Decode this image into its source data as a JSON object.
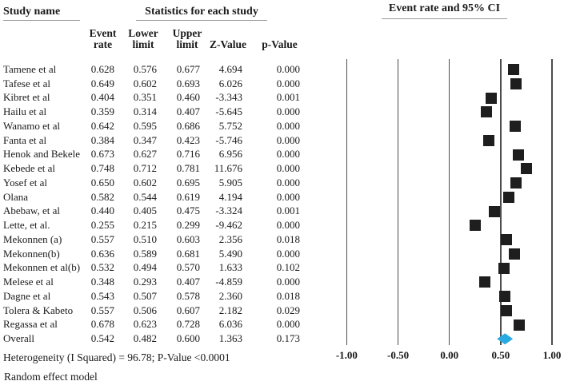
{
  "headers": {
    "study_name": "Study name",
    "stats_group": "Statistics for each study",
    "ci_group": "Event rate and 95% CI",
    "columns": [
      {
        "line1": "Event",
        "line2": "rate"
      },
      {
        "line1": "Lower",
        "line2": "limit"
      },
      {
        "line1": "Upper",
        "line2": "limit"
      },
      {
        "line1": "",
        "line2": "Z-Value"
      },
      {
        "line1": "",
        "line2": "p-Value"
      }
    ]
  },
  "chart_data": {
    "type": "forest",
    "title": "Event rate and 95% CI",
    "studies": [
      {
        "name": "Tamene et al",
        "rate": "0.628",
        "lower": "0.576",
        "upper": "0.677",
        "z": "4.694",
        "p": "0.000"
      },
      {
        "name": "Tafese et al",
        "rate": "0.649",
        "lower": "0.602",
        "upper": "0.693",
        "z": "6.026",
        "p": "0.000"
      },
      {
        "name": "Kibret et al",
        "rate": "0.404",
        "lower": "0.351",
        "upper": "0.460",
        "z": "-3.343",
        "p": "0.001"
      },
      {
        "name": "Hailu et al",
        "rate": "0.359",
        "lower": "0.314",
        "upper": "0.407",
        "z": "-5.645",
        "p": "0.000"
      },
      {
        "name": "Wanamo et al",
        "rate": "0.642",
        "lower": "0.595",
        "upper": "0.686",
        "z": "5.752",
        "p": "0.000"
      },
      {
        "name": "Fanta et al",
        "rate": "0.384",
        "lower": "0.347",
        "upper": "0.423",
        "z": "-5.746",
        "p": "0.000"
      },
      {
        "name": "Henok and Bekele",
        "rate": "0.673",
        "lower": "0.627",
        "upper": "0.716",
        "z": "6.956",
        "p": "0.000"
      },
      {
        "name": "Kebede et al",
        "rate": "0.748",
        "lower": "0.712",
        "upper": "0.781",
        "z": "11.676",
        "p": "0.000"
      },
      {
        "name": "Yosef et al",
        "rate": "0.650",
        "lower": "0.602",
        "upper": "0.695",
        "z": "5.905",
        "p": "0.000"
      },
      {
        "name": "Olana",
        "rate": "0.582",
        "lower": "0.544",
        "upper": "0.619",
        "z": "4.194",
        "p": "0.000"
      },
      {
        "name": "Abebaw, et al",
        "rate": "0.440",
        "lower": "0.405",
        "upper": "0.475",
        "z": "-3.324",
        "p": "0.001"
      },
      {
        "name": "Lette, et al.",
        "rate": "0.255",
        "lower": "0.215",
        "upper": "0.299",
        "z": "-9.462",
        "p": "0.000"
      },
      {
        "name": "Mekonnen (a)",
        "rate": "0.557",
        "lower": "0.510",
        "upper": "0.603",
        "z": "2.356",
        "p": "0.018"
      },
      {
        "name": "Mekonnen(b)",
        "rate": "0.636",
        "lower": "0.589",
        "upper": "0.681",
        "z": "5.490",
        "p": "0.000"
      },
      {
        "name": "Mekonnen et al(b)",
        "rate": "0.532",
        "lower": "0.494",
        "upper": "0.570",
        "z": "1.633",
        "p": "0.102"
      },
      {
        "name": "Melese et al",
        "rate": "0.348",
        "lower": "0.293",
        "upper": "0.407",
        "z": "-4.859",
        "p": "0.000"
      },
      {
        "name": "Dagne et al",
        "rate": "0.543",
        "lower": "0.507",
        "upper": "0.578",
        "z": "2.360",
        "p": "0.018"
      },
      {
        "name": "Tolera & Kabeto",
        "rate": "0.557",
        "lower": "0.506",
        "upper": "0.607",
        "z": "2.182",
        "p": "0.029"
      },
      {
        "name": "Regassa et al",
        "rate": "0.678",
        "lower": "0.623",
        "upper": "0.728",
        "z": "6.036",
        "p": "0.000"
      }
    ],
    "overall": {
      "name": "Overall",
      "rate": "0.542",
      "lower": "0.482",
      "upper": "0.600",
      "z": "1.363",
      "p": "0.173"
    },
    "axis": {
      "xlim": [
        -1.0,
        1.0
      ],
      "ticks": [
        -1.0,
        -0.5,
        0.0,
        0.5,
        1.0
      ],
      "tick_labels": [
        "-1.00",
        "-0.50",
        "0.00",
        "0.50",
        "1.00"
      ],
      "grid": true
    },
    "marker_color": "#1e1e1e",
    "overall_color": "#29abe2"
  },
  "footer": {
    "heterogeneity": "Heterogeneity (I Squared) = 96.78; P-Value <0.0001",
    "model": "Random effect model"
  }
}
